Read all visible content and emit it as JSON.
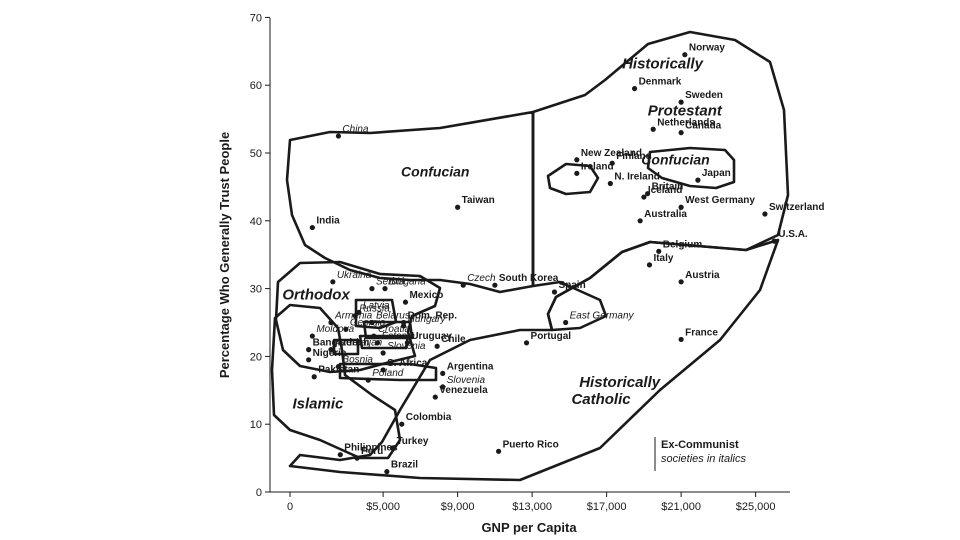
{
  "chart_data": {
    "type": "scatter",
    "xlabel": "GNP per Capita",
    "ylabel": "Percentage Who Generally Trust People",
    "xlim": [
      0,
      27000
    ],
    "ylim": [
      0,
      70
    ],
    "x_ticks": [
      {
        "value": 0,
        "label": "0"
      },
      {
        "value": 5000,
        "label": "$5,000"
      },
      {
        "value": 9000,
        "label": "$9,000"
      },
      {
        "value": 13000,
        "label": "$13,000"
      },
      {
        "value": 17000,
        "label": "$17,000"
      },
      {
        "value": 21000,
        "label": "$21,000"
      },
      {
        "value": 25000,
        "label": "$25,000"
      }
    ],
    "y_ticks": [
      {
        "value": 0,
        "label": "0"
      },
      {
        "value": 10,
        "label": "10"
      },
      {
        "value": 20,
        "label": "20"
      },
      {
        "value": 30,
        "label": "30"
      },
      {
        "value": 40,
        "label": "40"
      },
      {
        "value": 50,
        "label": "50"
      },
      {
        "value": 60,
        "label": "60"
      },
      {
        "value": 70,
        "label": "70"
      }
    ],
    "zones": [
      {
        "label": "Historically",
        "x": 20000,
        "y": 62.5
      },
      {
        "label": "Protestant",
        "x": 21200,
        "y": 55.5
      },
      {
        "label": "Confucian",
        "x": 7800,
        "y": 46.5
      },
      {
        "label": "Confucian",
        "x": 20700,
        "y": 48.3
      },
      {
        "label": "Orthodox",
        "x": 1400,
        "y": 28.4
      },
      {
        "label": "Islamic",
        "x": 1500,
        "y": 12.3
      },
      {
        "label": "Historically",
        "x": 17700,
        "y": 15.5
      },
      {
        "label": "Catholic",
        "x": 16700,
        "y": 13.0
      }
    ],
    "legend": [
      "Ex-Communist",
      "societies in italics"
    ],
    "points": [
      {
        "name": "Norway",
        "x": 21200,
        "y": 64.5,
        "ex_communist": false
      },
      {
        "name": "Denmark",
        "x": 18500,
        "y": 59.5,
        "ex_communist": false
      },
      {
        "name": "Sweden",
        "x": 21000,
        "y": 57.5,
        "ex_communist": false
      },
      {
        "name": "Netherlands",
        "x": 19500,
        "y": 53.5,
        "ex_communist": false
      },
      {
        "name": "Canada",
        "x": 21000,
        "y": 53.0,
        "ex_communist": false
      },
      {
        "name": "New Zealand",
        "x": 15400,
        "y": 49.0,
        "ex_communist": false
      },
      {
        "name": "Finland",
        "x": 17300,
        "y": 48.5,
        "ex_communist": false
      },
      {
        "name": "Japan",
        "x": 21900,
        "y": 46.0,
        "ex_communist": false
      },
      {
        "name": "Ireland",
        "x": 15400,
        "y": 47.0,
        "ex_communist": false
      },
      {
        "name": "N. Ireland",
        "x": 17200,
        "y": 45.5,
        "ex_communist": false
      },
      {
        "name": "Britain",
        "x": 19200,
        "y": 44.0,
        "ex_communist": false
      },
      {
        "name": "Iceland",
        "x": 19000,
        "y": 43.5,
        "ex_communist": false
      },
      {
        "name": "West Germany",
        "x": 21000,
        "y": 42.0,
        "ex_communist": false
      },
      {
        "name": "Switzerland",
        "x": 25500,
        "y": 41.0,
        "ex_communist": false
      },
      {
        "name": "Australia",
        "x": 18800,
        "y": 40.0,
        "ex_communist": false
      },
      {
        "name": "U.S.A.",
        "x": 26000,
        "y": 37.0,
        "ex_communist": false
      },
      {
        "name": "China",
        "x": 2600,
        "y": 52.5,
        "ex_communist": true
      },
      {
        "name": "Taiwan",
        "x": 9000,
        "y": 42.0,
        "ex_communist": false
      },
      {
        "name": "India",
        "x": 1200,
        "y": 39.0,
        "ex_communist": false
      },
      {
        "name": "Belgium",
        "x": 19800,
        "y": 35.5,
        "ex_communist": false
      },
      {
        "name": "Italy",
        "x": 19300,
        "y": 33.5,
        "ex_communist": false
      },
      {
        "name": "Austria",
        "x": 21000,
        "y": 31.0,
        "ex_communist": false
      },
      {
        "name": "South Korea",
        "x": 11000,
        "y": 30.5,
        "ex_communist": false
      },
      {
        "name": "Czech",
        "x": 9300,
        "y": 30.5,
        "ex_communist": true
      },
      {
        "name": "Spain",
        "x": 14200,
        "y": 29.5,
        "ex_communist": false
      },
      {
        "name": "East Germany",
        "x": 14800,
        "y": 25.0,
        "ex_communist": true
      },
      {
        "name": "Ukraina",
        "x": 2300,
        "y": 31.0,
        "ex_communist": true
      },
      {
        "name": "Serbia",
        "x": 4400,
        "y": 30.0,
        "ex_communist": true
      },
      {
        "name": "Bulgaria",
        "x": 5100,
        "y": 30.0,
        "ex_communist": true
      },
      {
        "name": "Mexico",
        "x": 6200,
        "y": 28.0,
        "ex_communist": false
      },
      {
        "name": "Latvia",
        "x": 3700,
        "y": 26.5,
        "ex_communist": true
      },
      {
        "name": "Russia",
        "x": 3500,
        "y": 26.0,
        "ex_communist": true
      },
      {
        "name": "Armenia",
        "x": 2200,
        "y": 25.0,
        "ex_communist": true
      },
      {
        "name": "Georgia",
        "x": 3000,
        "y": 24.0,
        "ex_communist": true
      },
      {
        "name": "Dom. Rep.",
        "x": 6100,
        "y": 25.0,
        "ex_communist": false
      },
      {
        "name": "Belarus",
        "x": 4400,
        "y": 25.0,
        "ex_communist": true
      },
      {
        "name": "Hungary",
        "x": 6100,
        "y": 24.5,
        "ex_communist": true
      },
      {
        "name": "Moldova",
        "x": 1200,
        "y": 23.0,
        "ex_communist": true
      },
      {
        "name": "Croatia",
        "x": 4500,
        "y": 23.0,
        "ex_communist": true
      },
      {
        "name": "Bangladesh",
        "x": 1000,
        "y": 21.0,
        "ex_communist": false
      },
      {
        "name": "Estonia",
        "x": 4700,
        "y": 22.0,
        "ex_communist": true
      },
      {
        "name": "Uruguay",
        "x": 6300,
        "y": 22.0,
        "ex_communist": false
      },
      {
        "name": "Portugal",
        "x": 12700,
        "y": 22.0,
        "ex_communist": false
      },
      {
        "name": "Chile",
        "x": 7900,
        "y": 21.5,
        "ex_communist": false
      },
      {
        "name": "France",
        "x": 21000,
        "y": 22.5,
        "ex_communist": false
      },
      {
        "name": "Azerbaijan",
        "x": 2200,
        "y": 21.0,
        "ex_communist": true
      },
      {
        "name": "Slovenia",
        "x": 5000,
        "y": 20.5,
        "ex_communist": true
      },
      {
        "name": "Nigeria",
        "x": 1000,
        "y": 19.5,
        "ex_communist": false
      },
      {
        "name": "Bosnia",
        "x": 2600,
        "y": 18.5,
        "ex_communist": true
      },
      {
        "name": "S. Africa",
        "x": 5000,
        "y": 18.0,
        "ex_communist": false
      },
      {
        "name": "Argentina",
        "x": 8200,
        "y": 17.5,
        "ex_communist": false
      },
      {
        "name": "Poland",
        "x": 4200,
        "y": 16.5,
        "ex_communist": true
      },
      {
        "name": "Pakistan",
        "x": 1300,
        "y": 17.0,
        "ex_communist": false
      },
      {
        "name": "Slovenia",
        "x": 8200,
        "y": 15.5,
        "ex_communist": true
      },
      {
        "name": "Venezuela",
        "x": 7800,
        "y": 14.0,
        "ex_communist": false
      },
      {
        "name": "Colombia",
        "x": 6000,
        "y": 10.0,
        "ex_communist": false
      },
      {
        "name": "Turkey",
        "x": 5500,
        "y": 6.5,
        "ex_communist": false
      },
      {
        "name": "Philippines",
        "x": 2700,
        "y": 5.5,
        "ex_communist": false
      },
      {
        "name": "Peru",
        "x": 3600,
        "y": 5.0,
        "ex_communist": false
      },
      {
        "name": "Brazil",
        "x": 5200,
        "y": 3.0,
        "ex_communist": false
      },
      {
        "name": "Puerto Rico",
        "x": 11200,
        "y": 6.0,
        "ex_communist": false
      }
    ]
  }
}
